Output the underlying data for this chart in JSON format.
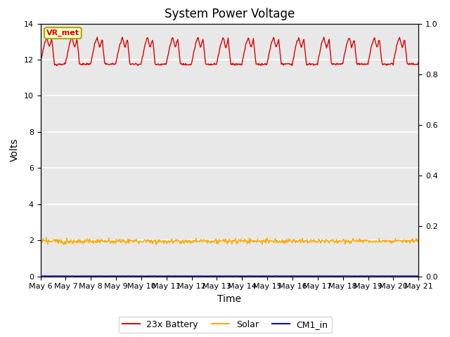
{
  "title": "System Power Voltage",
  "xlabel": "Time",
  "ylabel": "Volts",
  "ylim_left": [
    0,
    14
  ],
  "ylim_right": [
    0.0,
    1.0
  ],
  "yticks_left": [
    0,
    2,
    4,
    6,
    8,
    10,
    12,
    14
  ],
  "yticks_right": [
    0.0,
    0.2,
    0.4,
    0.6,
    0.8,
    1.0
  ],
  "xtick_labels": [
    "May 6",
    "May 7",
    "May 8",
    "May 9",
    "May 10",
    "May 11",
    "May 12",
    "May 13",
    "May 14",
    "May 15",
    "May 16",
    "May 17",
    "May 18",
    "May 19",
    "May 20",
    "May 21"
  ],
  "bg_color": "#e8e8e8",
  "grid_color": "#ffffff",
  "battery_color": "#dd0000",
  "solar_color": "#ffaa00",
  "cm1_color": "#0000cc",
  "annotation_text": "VR_met",
  "annotation_bg": "#ffffcc",
  "annotation_border": "#aaaa00",
  "legend_labels": [
    "23x Battery",
    "Solar",
    "CM1_in"
  ],
  "title_fontsize": 12,
  "label_fontsize": 10,
  "tick_fontsize": 8
}
